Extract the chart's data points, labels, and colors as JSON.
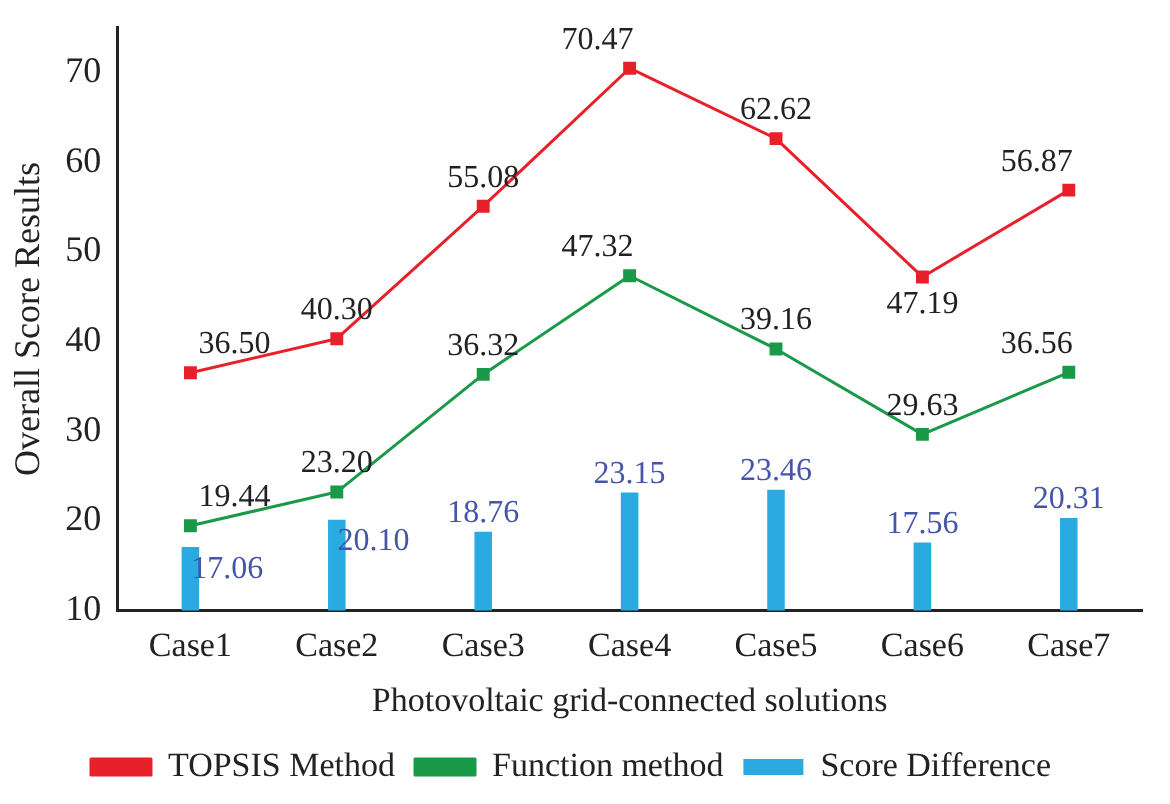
{
  "chart_data": {
    "type": "line",
    "xlabel": "Photovoltaic grid-connected solutions",
    "ylabel": "Overall Score Results",
    "categories": [
      "Case1",
      "Case2",
      "Case3",
      "Case4",
      "Case5",
      "Case6",
      "Case7"
    ],
    "series": [
      {
        "name": "TOPSIS Method",
        "color": "#e8202a",
        "values": [
          36.5,
          40.3,
          55.08,
          70.47,
          62.62,
          47.19,
          56.87
        ],
        "value_labels": [
          "36.50",
          "40.30",
          "55.08",
          "70.47",
          "62.62",
          "47.19",
          "56.87"
        ]
      },
      {
        "name": "Function method",
        "color": "#1a9a48",
        "values": [
          19.44,
          23.2,
          36.32,
          47.32,
          39.16,
          29.63,
          36.56
        ],
        "value_labels": [
          "19.44",
          "23.20",
          "36.32",
          "47.32",
          "39.16",
          "29.63",
          "36.56"
        ]
      },
      {
        "name": "Score Difference",
        "type": "bar",
        "color": "#29abe2",
        "values": [
          17.06,
          20.1,
          18.76,
          23.15,
          23.46,
          17.56,
          20.31
        ],
        "value_labels": [
          "17.06",
          "20.10",
          "18.76",
          "23.15",
          "23.46",
          "17.56",
          "20.31"
        ]
      }
    ],
    "ylim": [
      10,
      75
    ],
    "yticks": [
      10,
      20,
      30,
      40,
      50,
      60,
      70
    ],
    "grid": false,
    "legend": "bottom",
    "marker": "square"
  }
}
